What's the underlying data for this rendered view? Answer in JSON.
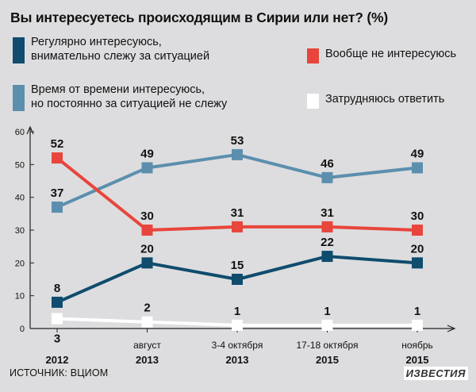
{
  "title": "Вы интересуетесь происходящим в Сирии или нет? (%)",
  "source": "ИСТОЧНИК: ВЦИОМ",
  "brand": "ИЗВЕСТИЯ",
  "chart_data": {
    "type": "line",
    "categories": [
      {
        "top": "",
        "bottom": "2012"
      },
      {
        "top": "август",
        "bottom": "2013"
      },
      {
        "top": "3-4 октября",
        "bottom": "2013"
      },
      {
        "top": "17-18 октября",
        "bottom": "2015"
      },
      {
        "top": "ноябрь",
        "bottom": "2015"
      }
    ],
    "ylim": [
      0,
      60
    ],
    "yticks": [
      0,
      10,
      20,
      30,
      40,
      50,
      60
    ],
    "grid": false,
    "legend_position": "top",
    "series": [
      {
        "name": "Регулярно интересуюсь,\nвнимательно слежу за ситуацией",
        "color": "#0f4c6e",
        "values": [
          8,
          20,
          15,
          22,
          20
        ],
        "label_position": "above"
      },
      {
        "name": "Вообще не интересуюсь",
        "color": "#e8453c",
        "values": [
          52,
          30,
          31,
          31,
          30
        ],
        "label_position": "above"
      },
      {
        "name": "Время от времени интересуюсь,\nно постоянно за ситуацией не слежу",
        "color": "#5c8fae",
        "values": [
          37,
          49,
          53,
          46,
          49
        ],
        "label_position": "above"
      },
      {
        "name": "Затрудняюсь ответить",
        "color": "#ffffff",
        "values": [
          3,
          2,
          1,
          1,
          1
        ],
        "label_position": "below_first"
      }
    ]
  }
}
